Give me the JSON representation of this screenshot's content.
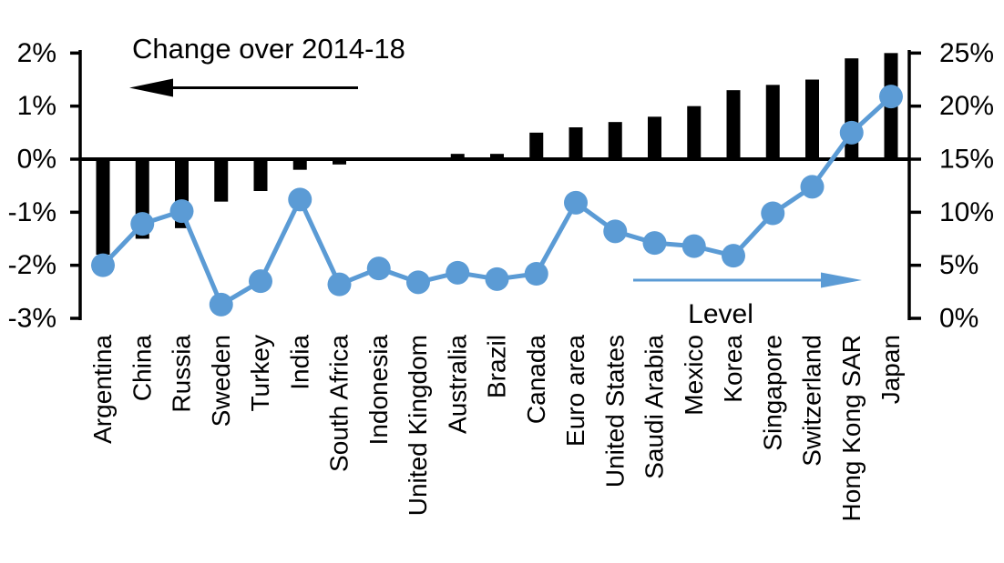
{
  "colors": {
    "background": "#FFFFFF",
    "text": "#000000",
    "bar": "#000000",
    "line": "#5B9BD5"
  },
  "chart_data": {
    "type": "bar+line",
    "categories": [
      "Argentina",
      "China",
      "Russia",
      "Sweden",
      "Turkey",
      "India",
      "South Africa",
      "Indonesia",
      "United Kingdom",
      "Australia",
      "Brazil",
      "Canada",
      "Euro area",
      "United States",
      "Saudi Arabia",
      "Mexico",
      "Korea",
      "Singapore",
      "Switzerland",
      "Hong Kong SAR",
      "Japan"
    ],
    "series": [
      {
        "name": "Change over 2014-18",
        "type": "bar",
        "axis": "left",
        "unit": "%",
        "color": "#000000",
        "values": [
          -1.8,
          -1.5,
          -1.3,
          -0.8,
          -0.6,
          -0.2,
          -0.1,
          0,
          0,
          0.1,
          0.1,
          0.5,
          0.6,
          0.7,
          0.8,
          1.0,
          1.3,
          1.4,
          1.5,
          1.9,
          2.0
        ]
      },
      {
        "name": "Level",
        "type": "line",
        "axis": "right",
        "unit": "%",
        "color": "#5B9BD5",
        "values": [
          5.0,
          8.9,
          10.1,
          1.3,
          3.5,
          11.2,
          3.2,
          4.7,
          3.4,
          4.3,
          3.7,
          4.2,
          10.9,
          8.2,
          7.1,
          6.8,
          5.9,
          9.9,
          12.4,
          17.5,
          20.9
        ]
      }
    ],
    "left_axis": {
      "min": -3,
      "max": 2,
      "tick_values": [
        2,
        1,
        0,
        -1,
        -2,
        -3
      ],
      "tick_labels": [
        "2%",
        "1%",
        "0%",
        "-1%",
        "-2%",
        "-3%"
      ]
    },
    "right_axis": {
      "min": 0,
      "max": 25,
      "tick_values": [
        25,
        20,
        15,
        10,
        5,
        0
      ],
      "tick_labels": [
        "25%",
        "20%",
        "15%",
        "10%",
        "5%",
        "0%"
      ]
    },
    "annotations": {
      "change_label": "Change over 2014-18",
      "level_label": "Level"
    },
    "layout_hints": {
      "grid": "off",
      "zero_line_left_equals_right": "0% left = 15% right",
      "category_labels_rotated": true
    }
  }
}
